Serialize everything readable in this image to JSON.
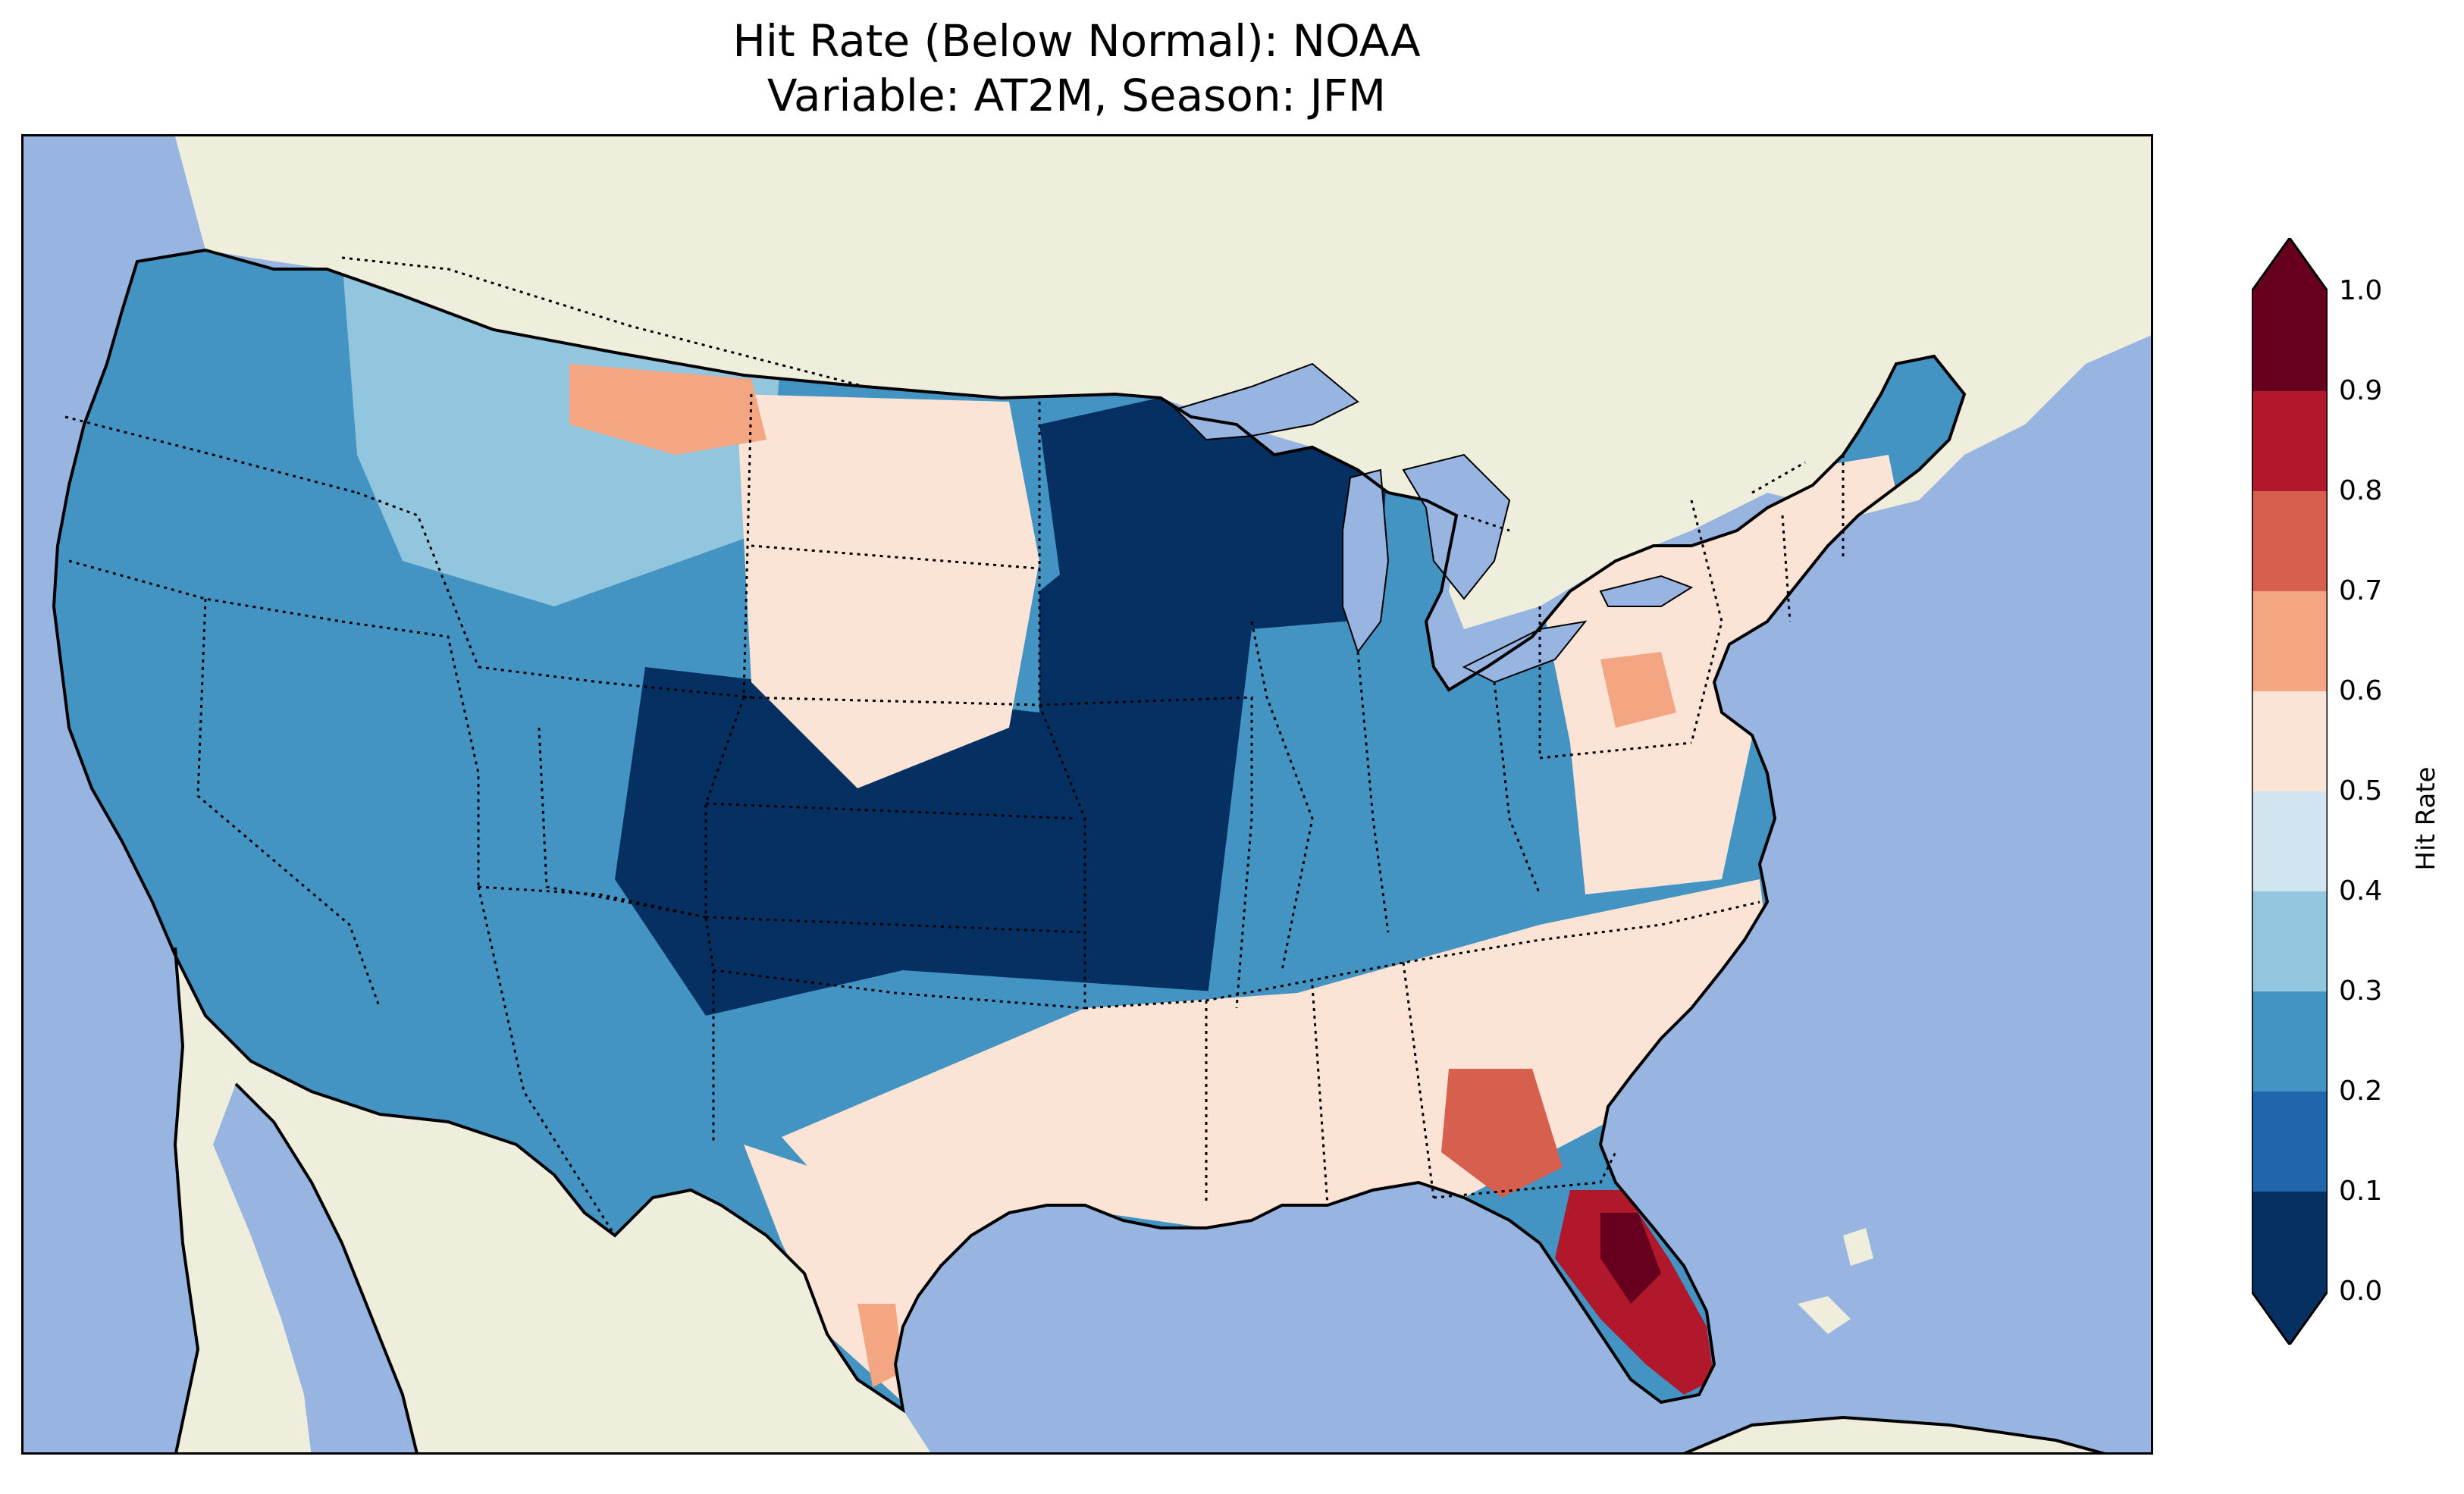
{
  "figure": {
    "title_line1": "Hit Rate (Below Normal): NOAA",
    "title_line2": "Variable: AT2M, Season: JFM"
  },
  "map": {
    "projection": "Lambert Conformal (CONUS)",
    "extent_description": "Contiguous United States with parts of Canada, Mexico, Cuba and the Bahamas",
    "colors": {
      "ocean": "#97b5e0",
      "land": "#efeddb",
      "coastline": "#000000",
      "borders": "#000000"
    },
    "regions": [
      {
        "name": "Pacific Northwest coast",
        "level": 0.25
      },
      {
        "name": "Northern Rockies",
        "level": 0.35
      },
      {
        "name": "California",
        "level": 0.2
      },
      {
        "name": "Great Basin",
        "level": 0.25
      },
      {
        "name": "Southwest",
        "level": 0.25
      },
      {
        "name": "Central Plains",
        "level": 0.05
      },
      {
        "name": "Upper Midwest",
        "level": 0.05
      },
      {
        "name": "Ohio Valley",
        "level": 0.25
      },
      {
        "name": "Northern Plains",
        "level": 0.55
      },
      {
        "name": "Montana",
        "level": 0.65
      },
      {
        "name": "Southeast",
        "level": 0.55
      },
      {
        "name": "Georgia",
        "level": 0.75
      },
      {
        "name": "Florida peninsula",
        "level": 0.85
      },
      {
        "name": "Central Florida",
        "level": 0.95
      },
      {
        "name": "Northeast",
        "level": 0.55
      },
      {
        "name": "Pennsylvania",
        "level": 0.65
      },
      {
        "name": "Texas",
        "level": 0.55
      },
      {
        "name": "South Texas",
        "level": 0.65
      }
    ]
  },
  "colorbar": {
    "label": "Hit Rate",
    "ticks": [
      "0.0",
      "0.1",
      "0.2",
      "0.3",
      "0.4",
      "0.5",
      "0.6",
      "0.7",
      "0.8",
      "0.9",
      "1.0"
    ],
    "bins": [
      {
        "range": "0.0-0.1",
        "color": "#053061"
      },
      {
        "range": "0.1-0.2",
        "color": "#2166ac"
      },
      {
        "range": "0.2-0.3",
        "color": "#4393c3"
      },
      {
        "range": "0.3-0.4",
        "color": "#92c5de"
      },
      {
        "range": "0.4-0.5",
        "color": "#d1e5f0"
      },
      {
        "range": "0.5-0.6",
        "color": "#fbe3d6"
      },
      {
        "range": "0.6-0.7",
        "color": "#f4a582"
      },
      {
        "range": "0.7-0.8",
        "color": "#d6604d"
      },
      {
        "range": "0.8-0.9",
        "color": "#b2182b"
      },
      {
        "range": "0.9-1.0",
        "color": "#67001f"
      }
    ],
    "under_color": "#053061",
    "over_color": "#67001f",
    "extend": "both"
  }
}
